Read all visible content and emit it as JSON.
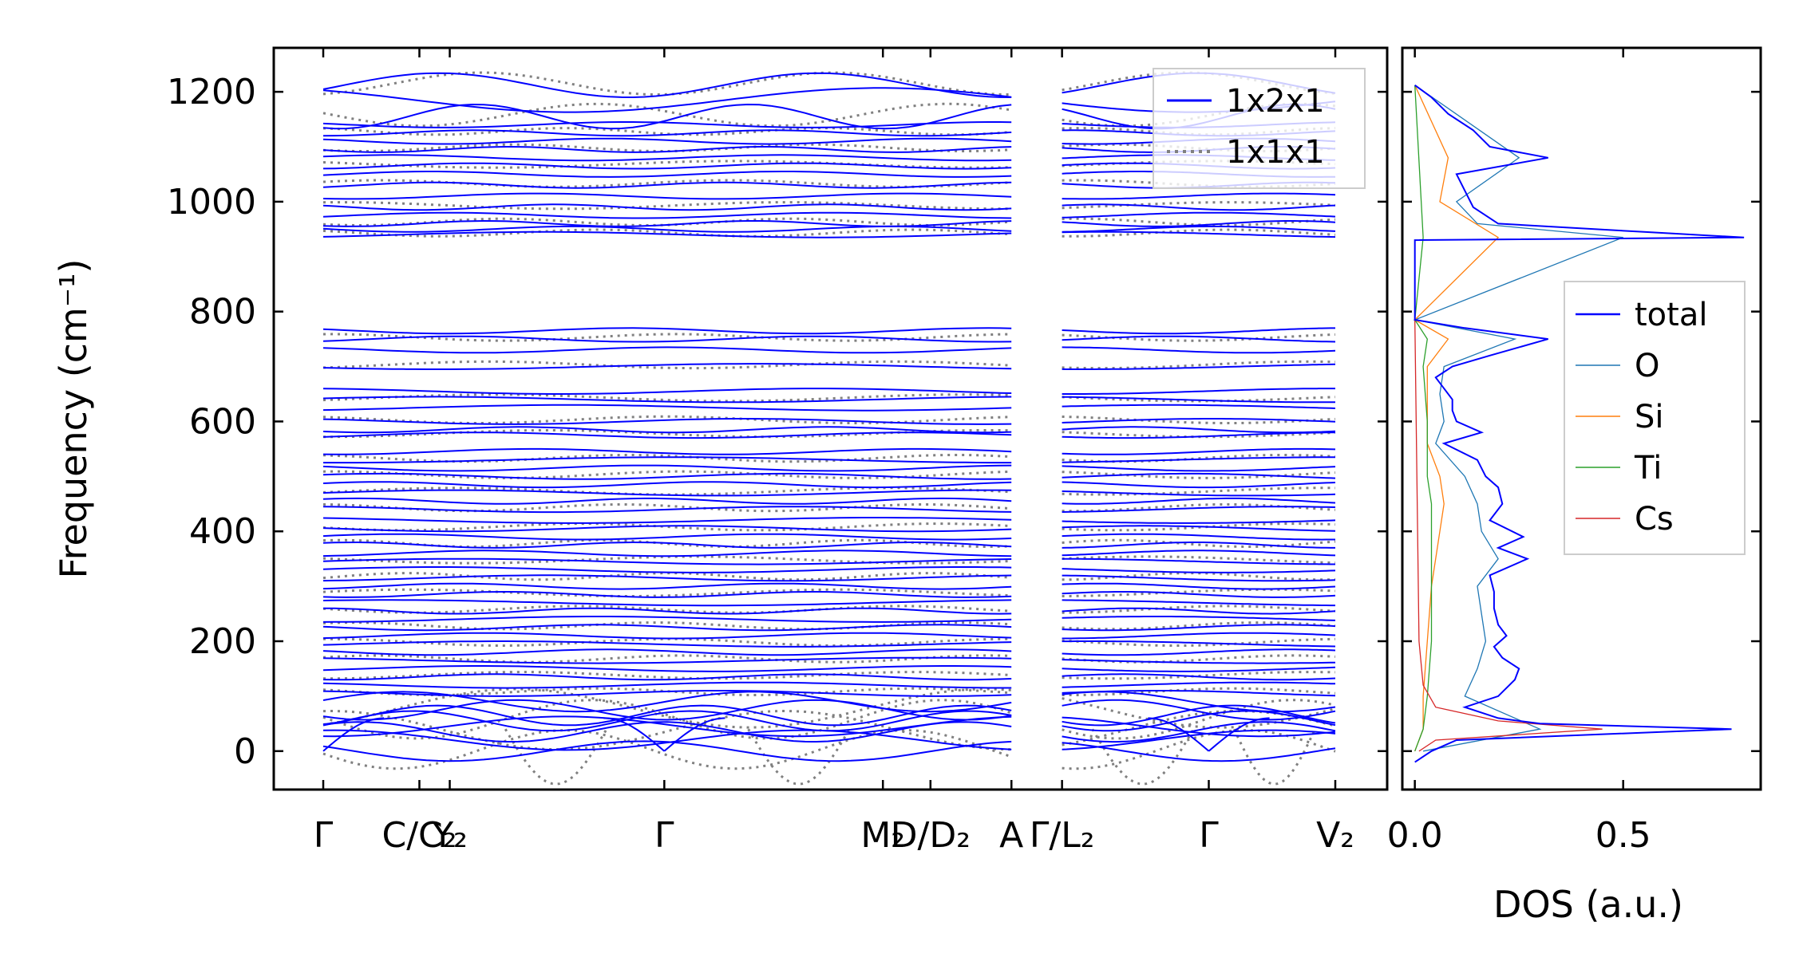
{
  "chart_data": [
    {
      "type": "line",
      "title": "",
      "ylabel": "Frequency (cm⁻¹)",
      "xlabel": "",
      "ylim": [
        -70,
        1280
      ],
      "yticks": [
        0,
        200,
        400,
        600,
        800,
        1000,
        1200
      ],
      "ytick_labels": [
        "0",
        "200",
        "400",
        "600",
        "800",
        "1000",
        "1200"
      ],
      "kpath_labels": [
        "Γ",
        "C/C₂",
        "Y₂",
        "Γ",
        "M₂",
        "D/D₂",
        "A",
        "Γ/L₂",
        "Γ",
        "V₂"
      ],
      "kpath_positions": [
        0.0,
        0.095,
        0.125,
        0.337,
        0.553,
        0.6,
        0.68,
        0.73,
        0.875,
        1.0
      ],
      "segments": [
        [
          0.0,
          0.68
        ],
        [
          0.73,
          1.0
        ]
      ],
      "legend": {
        "placement": "top-right",
        "entries": [
          {
            "name": "1x2x1",
            "color": "#0000ff",
            "style": "solid"
          },
          {
            "name": "1x1x1",
            "color": "#808080",
            "style": "dotted"
          }
        ]
      },
      "series": [
        {
          "name": "1x2x1",
          "description_bands": [
            {
              "range": [
                0,
                560
              ],
              "approx_count": 90
            },
            {
              "range": [
                570,
                775
              ],
              "approx_count": 14
            },
            {
              "range": [
                935,
                1215
              ],
              "approx_count": 28
            }
          ]
        },
        {
          "name": "1x1x1",
          "description_bands": [
            {
              "range": [
                -65,
                560
              ],
              "approx_count": 45
            },
            {
              "range": [
                570,
                785
              ],
              "approx_count": 8
            },
            {
              "range": [
                935,
                1215
              ],
              "approx_count": 14
            }
          ]
        }
      ],
      "flat_levels": [
        0,
        20,
        35,
        45,
        55,
        65,
        75,
        90,
        105,
        120,
        135,
        150,
        165,
        180,
        195,
        210,
        225,
        240,
        255,
        270,
        285,
        300,
        315,
        330,
        345,
        360,
        375,
        390,
        405,
        420,
        440,
        455,
        470,
        485,
        500,
        515,
        530,
        545,
        575,
        585,
        600,
        625,
        640,
        655,
        700,
        730,
        750,
        765,
        940,
        950,
        960,
        975,
        990,
        1010,
        1030,
        1050,
        1065,
        1080,
        1095,
        1110,
        1125,
        1140,
        1155,
        1185,
        1212
      ]
    },
    {
      "type": "line",
      "title": "",
      "xlabel": "DOS (a.u.)",
      "ylabel": "",
      "xlim": [
        -0.03,
        0.83
      ],
      "ylim": [
        -70,
        1280
      ],
      "xticks": [
        0.0,
        0.5
      ],
      "xtick_labels": [
        "0.0",
        "0.5"
      ],
      "legend": {
        "placement": "center-right"
      },
      "series": [
        {
          "name": "total",
          "color": "#0000ff",
          "peaks": [
            [
              -20,
              0.0
            ],
            [
              0,
              0.04
            ],
            [
              20,
              0.1
            ],
            [
              40,
              0.76
            ],
            [
              50,
              0.3
            ],
            [
              60,
              0.2
            ],
            [
              80,
              0.12
            ],
            [
              100,
              0.2
            ],
            [
              130,
              0.24
            ],
            [
              150,
              0.25
            ],
            [
              170,
              0.21
            ],
            [
              190,
              0.19
            ],
            [
              210,
              0.22
            ],
            [
              230,
              0.2
            ],
            [
              260,
              0.19
            ],
            [
              290,
              0.19
            ],
            [
              320,
              0.18
            ],
            [
              350,
              0.27
            ],
            [
              370,
              0.2
            ],
            [
              390,
              0.26
            ],
            [
              420,
              0.18
            ],
            [
              450,
              0.21
            ],
            [
              480,
              0.2
            ],
            [
              500,
              0.17
            ],
            [
              530,
              0.15
            ],
            [
              560,
              0.07
            ],
            [
              580,
              0.16
            ],
            [
              600,
              0.1
            ],
            [
              620,
              0.09
            ],
            [
              640,
              0.09
            ],
            [
              680,
              0.05
            ],
            [
              700,
              0.09
            ],
            [
              720,
              0.18
            ],
            [
              750,
              0.32
            ],
            [
              770,
              0.12
            ],
            [
              785,
              0.0
            ],
            [
              930,
              0.0
            ],
            [
              935,
              0.79
            ],
            [
              945,
              0.55
            ],
            [
              960,
              0.2
            ],
            [
              990,
              0.14
            ],
            [
              1020,
              0.12
            ],
            [
              1050,
              0.1
            ],
            [
              1080,
              0.32
            ],
            [
              1100,
              0.18
            ],
            [
              1130,
              0.14
            ],
            [
              1160,
              0.08
            ],
            [
              1190,
              0.04
            ],
            [
              1212,
              0.0
            ]
          ]
        },
        {
          "name": "O",
          "color": "#1f77b4",
          "peaks": [
            [
              0,
              0.02
            ],
            [
              40,
              0.3
            ],
            [
              100,
              0.12
            ],
            [
              150,
              0.15
            ],
            [
              200,
              0.17
            ],
            [
              250,
              0.16
            ],
            [
              300,
              0.15
            ],
            [
              350,
              0.2
            ],
            [
              400,
              0.16
            ],
            [
              450,
              0.15
            ],
            [
              500,
              0.12
            ],
            [
              560,
              0.05
            ],
            [
              600,
              0.07
            ],
            [
              650,
              0.06
            ],
            [
              700,
              0.07
            ],
            [
              750,
              0.24
            ],
            [
              785,
              0.0
            ],
            [
              935,
              0.5
            ],
            [
              960,
              0.15
            ],
            [
              1000,
              0.1
            ],
            [
              1080,
              0.25
            ],
            [
              1212,
              0.0
            ]
          ]
        },
        {
          "name": "Si",
          "color": "#ff7f0e",
          "peaks": [
            [
              0,
              0.0
            ],
            [
              40,
              0.02
            ],
            [
              100,
              0.02
            ],
            [
              200,
              0.03
            ],
            [
              300,
              0.04
            ],
            [
              400,
              0.06
            ],
            [
              450,
              0.07
            ],
            [
              500,
              0.06
            ],
            [
              560,
              0.03
            ],
            [
              600,
              0.03
            ],
            [
              700,
              0.03
            ],
            [
              750,
              0.08
            ],
            [
              785,
              0.0
            ],
            [
              935,
              0.2
            ],
            [
              1000,
              0.06
            ],
            [
              1080,
              0.08
            ],
            [
              1212,
              0.0
            ]
          ]
        },
        {
          "name": "Ti",
          "color": "#2ca02c",
          "peaks": [
            [
              0,
              0.0
            ],
            [
              40,
              0.02
            ],
            [
              100,
              0.03
            ],
            [
              200,
              0.04
            ],
            [
              300,
              0.04
            ],
            [
              400,
              0.04
            ],
            [
              450,
              0.04
            ],
            [
              500,
              0.03
            ],
            [
              600,
              0.03
            ],
            [
              700,
              0.02
            ],
            [
              750,
              0.03
            ],
            [
              785,
              0.0
            ],
            [
              935,
              0.02
            ],
            [
              1212,
              0.0
            ]
          ]
        },
        {
          "name": "Cs",
          "color": "#d62728",
          "peaks": [
            [
              0,
              0.01
            ],
            [
              20,
              0.05
            ],
            [
              40,
              0.45
            ],
            [
              55,
              0.2
            ],
            [
              80,
              0.05
            ],
            [
              120,
              0.02
            ],
            [
              200,
              0.01
            ],
            [
              785,
              0.0
            ]
          ]
        }
      ]
    }
  ],
  "legend_main": {
    "items": [
      "1x2x1",
      "1x1x1"
    ]
  },
  "legend_dos": {
    "items": [
      "total",
      "O",
      "Si",
      "Ti",
      "Cs"
    ]
  }
}
